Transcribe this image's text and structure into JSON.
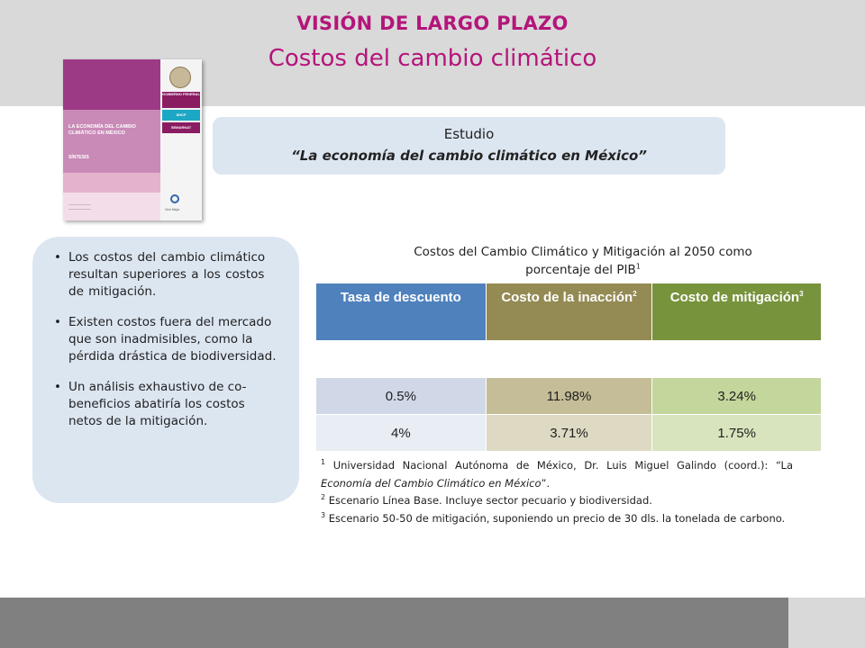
{
  "header": {
    "title": "VISIÓN DE LARGO PLAZO",
    "subtitle": "Costos del cambio climático"
  },
  "book_cover": {
    "title": "LA ECONOMÍA DEL CAMBIO CLIMÁTICO EN MÉXICO",
    "label": "SÍNTESIS",
    "gob_label": "GOBIERNO FEDERAL",
    "shcp_label": "SHCP",
    "semarnat_label": "SEMARNAT",
    "vivir_label": "Vivir Mejor"
  },
  "study": {
    "label": "Estudio",
    "title": "“La economía del cambio climático en México”"
  },
  "bullets": [
    "Los costos del cambio climático resultan superiores a los costos de mitigación.",
    "Existen costos fuera del mercado que son inadmisibles, como la pérdida drástica de biodiversidad.",
    "Un análisis exhaustivo de co-beneficios abatiría los costos netos de la mitigación."
  ],
  "table": {
    "caption_line1": "Costos del Cambio Climático y Mitigación al 2050 como",
    "caption_line2": "porcentaje del PIB",
    "caption_sup": "1",
    "headers": {
      "rate": "Tasa de descuento",
      "inaction": "Costo de la inacción",
      "inaction_sup": "2",
      "mitigation": "Costo de mitigación",
      "mitigation_sup": "3"
    },
    "rows": [
      {
        "rate": "0.5%",
        "inaction": "11.98%",
        "mitigation": "3.24%"
      },
      {
        "rate": "4%",
        "inaction": "3.71%",
        "mitigation": "1.75%"
      }
    ]
  },
  "notes": [
    {
      "sup": "1",
      "text": " Universidad Nacional Autónoma de México, Dr. Luis Miguel Galindo (coord.): “La ",
      "italic": "Economía del Cambio Climático en México",
      "tail": "”."
    },
    {
      "sup": "2",
      "text": " Escenario Línea Base. Incluye sector pecuario y biodiversidad."
    },
    {
      "sup": "3",
      "text": " Escenario 50-50 de mitigación, suponiendo un precio de 30 dls. la tonelada de carbono."
    }
  ],
  "colors": {
    "title": "#b4157a",
    "header_rate": "#4f81bd",
    "header_inaction": "#948a54",
    "header_mitigation": "#77933c"
  }
}
